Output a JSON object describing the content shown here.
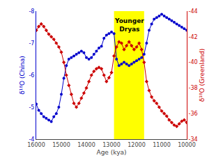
{
  "chart_data": {
    "type": "line",
    "xlabel": "Age (kya)",
    "ylabel": "δ¹⁸O (China)",
    "y2label": "δ¹⁸O (Greenland)",
    "x": [
      16000,
      15900,
      15800,
      15700,
      15600,
      15500,
      15400,
      15300,
      15200,
      15100,
      15000,
      14900,
      14800,
      14700,
      14600,
      14500,
      14400,
      14300,
      14200,
      14100,
      14000,
      13900,
      13800,
      13700,
      13600,
      13500,
      13400,
      13300,
      13200,
      13100,
      13000,
      12900,
      12800,
      12700,
      12600,
      12500,
      12400,
      12300,
      12200,
      12100,
      12000,
      11900,
      11800,
      11700,
      11600,
      11500,
      11400,
      11300,
      11200,
      11100,
      11000,
      10900,
      10800,
      10700,
      10600,
      10500,
      10400,
      10300,
      10200,
      10100,
      10000
    ],
    "series": [
      {
        "color": "#0000CC",
        "marker": "circle",
        "values": [
          -5.1,
          -4.9,
          -4.8,
          -4.7,
          -4.65,
          -4.6,
          -4.55,
          -4.7,
          -4.8,
          -5.0,
          -5.4,
          -5.9,
          -6.3,
          -6.5,
          -6.55,
          -6.6,
          -6.65,
          -6.7,
          -6.75,
          -6.7,
          -6.55,
          -6.5,
          -6.55,
          -6.65,
          -6.75,
          -6.85,
          -6.9,
          -7.15,
          -7.25,
          -7.3,
          -7.35,
          -7.3,
          -6.5,
          -6.3,
          -6.35,
          -6.4,
          -6.35,
          -6.3,
          -6.35,
          -6.4,
          -6.45,
          -6.5,
          -6.55,
          -6.65,
          -7.0,
          -7.4,
          -7.6,
          -7.75,
          -7.8,
          -7.85,
          -7.9,
          -7.85,
          -7.8,
          -7.75,
          -7.7,
          -7.65,
          -7.6,
          -7.55,
          -7.5,
          -7.45,
          -7.4
        ]
      },
      {
        "color": "#CC0000",
        "marker": "diamond",
        "axis": "y2",
        "values": [
          -42.5,
          -42.8,
          -43.0,
          -42.8,
          -42.5,
          -42.2,
          -42.0,
          -41.8,
          -41.5,
          -41.2,
          -40.8,
          -40.0,
          -39.0,
          -38.2,
          -37.5,
          -36.8,
          -36.5,
          -36.8,
          -37.2,
          -37.6,
          -38.0,
          -38.5,
          -39.0,
          -39.3,
          -39.5,
          -39.6,
          -39.5,
          -39.0,
          -38.5,
          -38.8,
          -39.2,
          -40.5,
          -41.2,
          -41.6,
          -41.5,
          -41.0,
          -41.3,
          -41.6,
          -41.3,
          -41.0,
          -41.2,
          -41.5,
          -41.0,
          -40.0,
          -38.5,
          -37.8,
          -37.3,
          -37.0,
          -36.8,
          -36.5,
          -36.2,
          -36.0,
          -35.8,
          -35.5,
          -35.3,
          -35.1,
          -35.0,
          -35.2,
          -35.4,
          -35.5,
          -35.3
        ]
      }
    ],
    "xlim": [
      16000,
      10000
    ],
    "xticks": [
      16000,
      15000,
      14000,
      13000,
      12000,
      11000,
      10000
    ],
    "ylim": [
      -4,
      -8
    ],
    "yticks": [
      -8,
      -7,
      -6,
      -5,
      -4
    ],
    "y2lim": [
      -34,
      -44
    ],
    "y2ticks": [
      -44,
      -42,
      -40,
      -38,
      -36,
      -34
    ],
    "span": {
      "from": 12900,
      "to": 11700,
      "color": "#FFFF00"
    },
    "annotations": [
      {
        "text": "Younger\nDryas",
        "x": 12300,
        "y": -7.85
      }
    ],
    "grid": false
  }
}
